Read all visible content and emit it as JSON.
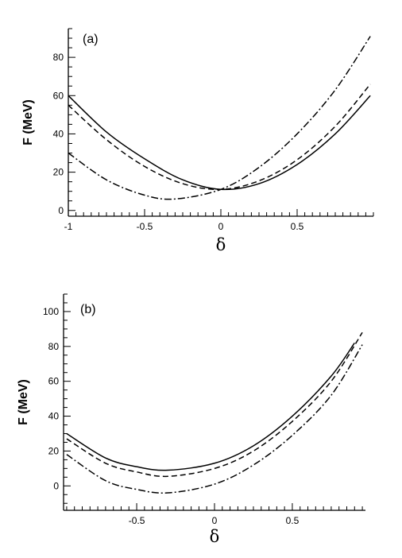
{
  "chart_data": [
    {
      "type": "line",
      "panel_label": "(a)",
      "xlabel": "δ",
      "ylabel": "F (MeV)",
      "xlim": [
        -1,
        1
      ],
      "ylim": [
        -3,
        95
      ],
      "x_ticks": [
        -1,
        -0.5,
        0,
        0.5
      ],
      "x_tick_labels": [
        "-1",
        "-0.5",
        "0",
        "0.5"
      ],
      "y_ticks": [
        0,
        20,
        40,
        60,
        80
      ],
      "y_tick_labels": [
        "0",
        "20",
        "40",
        "60",
        "80"
      ],
      "grid": false,
      "series": [
        {
          "style": "solid",
          "x": [
            -1,
            -0.75,
            -0.5,
            -0.25,
            0,
            0.25,
            0.5,
            0.75,
            0.98
          ],
          "y": [
            60,
            41,
            27,
            16,
            11,
            14,
            24,
            40,
            60
          ]
        },
        {
          "style": "dashed",
          "x": [
            -1,
            -0.75,
            -0.5,
            -0.25,
            0,
            0.25,
            0.5,
            0.75,
            0.98
          ],
          "y": [
            55,
            37,
            23,
            14,
            11,
            15.5,
            26.5,
            44,
            66
          ]
        },
        {
          "style": "dashdot",
          "x": [
            -1,
            -0.75,
            -0.5,
            -0.3,
            0,
            0.25,
            0.5,
            0.75,
            0.98
          ],
          "y": [
            30,
            16,
            8,
            6,
            11,
            22.5,
            40,
            63,
            91
          ]
        }
      ]
    },
    {
      "type": "line",
      "panel_label": "(b)",
      "xlabel": "δ",
      "ylabel": "F (MeV)",
      "xlim": [
        -0.97,
        0.97
      ],
      "ylim": [
        -14,
        110
      ],
      "x_ticks": [
        -0.5,
        0,
        0.5
      ],
      "x_tick_labels": [
        "-0.5",
        "0",
        "0.5"
      ],
      "y_ticks": [
        0,
        20,
        40,
        60,
        80,
        100
      ],
      "y_tick_labels": [
        "0",
        "20",
        "40",
        "60",
        "80",
        "100"
      ],
      "grid": false,
      "series": [
        {
          "style": "solid",
          "x": [
            -0.95,
            -0.7,
            -0.5,
            -0.3,
            0,
            0.25,
            0.5,
            0.75,
            0.9
          ],
          "y": [
            30,
            16,
            11,
            9,
            13,
            23,
            40,
            63,
            82
          ]
        },
        {
          "style": "dashed",
          "x": [
            -0.95,
            -0.7,
            -0.5,
            -0.3,
            0,
            0.25,
            0.5,
            0.75,
            0.95
          ],
          "y": [
            27,
            13,
            8,
            5.5,
            10,
            20,
            37,
            60,
            88
          ]
        },
        {
          "style": "dashdot",
          "x": [
            -0.95,
            -0.7,
            -0.5,
            -0.3,
            0,
            0.25,
            0.5,
            0.75,
            0.95
          ],
          "y": [
            18,
            3,
            -2,
            -4,
            1,
            12,
            29,
            52,
            81
          ]
        }
      ]
    }
  ]
}
